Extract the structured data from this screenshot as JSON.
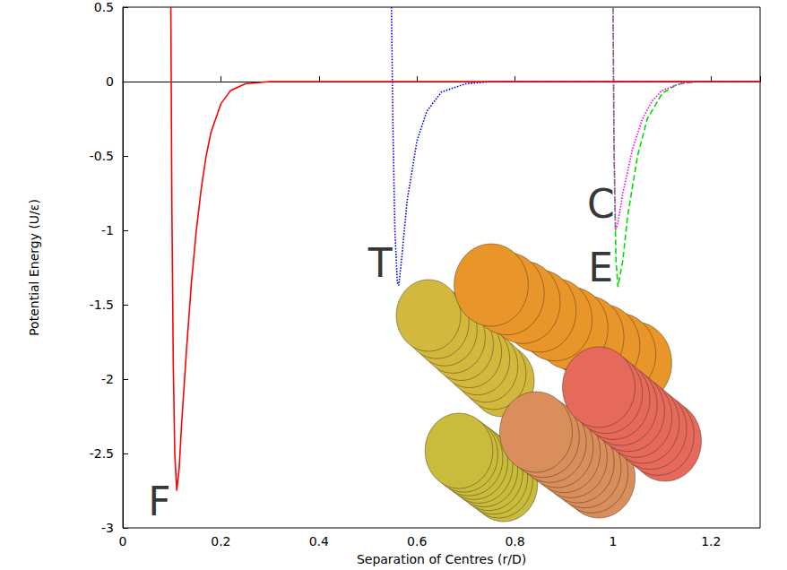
{
  "chart_data": {
    "type": "line",
    "x_label": "Separation of Centres (r/D)",
    "y_label": "Potential Energy (U/ε)",
    "xlim": [
      0,
      1.3
    ],
    "xticks": [
      0,
      0.2,
      0.4,
      0.6,
      0.8,
      1,
      1.2
    ],
    "ylim": [
      -3,
      0.5
    ],
    "yticks": [
      -3,
      -2.5,
      -2,
      -1.5,
      -1,
      -0.5,
      0,
      0.5
    ],
    "grid": false,
    "series": [
      {
        "color": "#00dd00",
        "line_style": "dashed",
        "x": [
          1.0,
          1.002,
          1.006,
          1.01,
          1.02,
          1.03,
          1.05,
          1.07,
          1.1,
          1.13,
          1.17,
          1.3
        ],
        "values": [
          0.5,
          -0.5,
          -1.2,
          -1.38,
          -1.2,
          -0.9,
          -0.5,
          -0.25,
          -0.08,
          -0.02,
          0,
          0
        ]
      },
      {
        "color": "#ff00ff",
        "line_style": "dotted",
        "x": [
          1.0,
          1.002,
          1.005,
          1.01,
          1.02,
          1.04,
          1.06,
          1.08,
          1.1,
          1.14,
          1.17,
          1.3
        ],
        "values": [
          0.5,
          -0.4,
          -1.0,
          -0.95,
          -0.75,
          -0.45,
          -0.25,
          -0.13,
          -0.06,
          -0.01,
          0,
          0
        ]
      },
      {
        "color": "#0000ff",
        "line_style": "dotted",
        "x": [
          0.548,
          0.551,
          0.555,
          0.56,
          0.563,
          0.57,
          0.58,
          0.6,
          0.62,
          0.65,
          0.7,
          0.75,
          1.3
        ],
        "values": [
          0.5,
          -0.3,
          -1.0,
          -1.35,
          -1.37,
          -1.15,
          -0.8,
          -0.4,
          -0.2,
          -0.07,
          -0.015,
          0,
          0
        ]
      },
      {
        "color": "#ff0000",
        "line_style": "solid",
        "x": [
          0.098,
          0.1,
          0.103,
          0.106,
          0.11,
          0.115,
          0.12,
          0.13,
          0.14,
          0.15,
          0.16,
          0.17,
          0.18,
          0.2,
          0.22,
          0.25,
          0.3,
          1.3
        ],
        "values": [
          0.5,
          -0.8,
          -1.9,
          -2.5,
          -2.75,
          -2.6,
          -2.3,
          -1.8,
          -1.35,
          -1.0,
          -0.72,
          -0.5,
          -0.34,
          -0.15,
          -0.06,
          -0.015,
          0,
          0
        ]
      }
    ],
    "annotations": [
      {
        "text": "F",
        "x": 0.075,
        "y": -2.82
      },
      {
        "text": "T",
        "x": 0.525,
        "y": -1.22
      },
      {
        "text": "C",
        "x": 0.975,
        "y": -0.82
      },
      {
        "text": "E",
        "x": 0.975,
        "y": -1.25
      }
    ]
  }
}
